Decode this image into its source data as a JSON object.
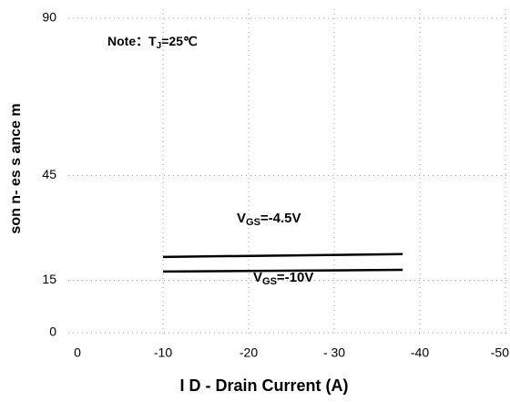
{
  "chart_data": {
    "type": "line",
    "ylabel": "son   n- es s ance m",
    "xlabel": "I D - Drain Current (A)",
    "note": [
      "Note：T",
      "J",
      "=25℃"
    ],
    "xlim": [
      0,
      -50
    ],
    "xticks": [
      0,
      -10,
      -20,
      {
        "value": -30,
        "label": "- 30"
      },
      -40,
      -50
    ],
    "ylim": [
      0,
      90
    ],
    "yticks": [
      0,
      15,
      45,
      90
    ],
    "grid": true,
    "x": [
      -10,
      -38
    ],
    "series": [
      {
        "name": [
          "V",
          "GS",
          "=-4.5V"
        ],
        "color": "#000000",
        "values": [
          21.7,
          22.5
        ]
      },
      {
        "name": [
          "V",
          "GS",
          "=-10V"
        ],
        "color": "#000000",
        "values": [
          17.5,
          18
        ]
      }
    ]
  }
}
